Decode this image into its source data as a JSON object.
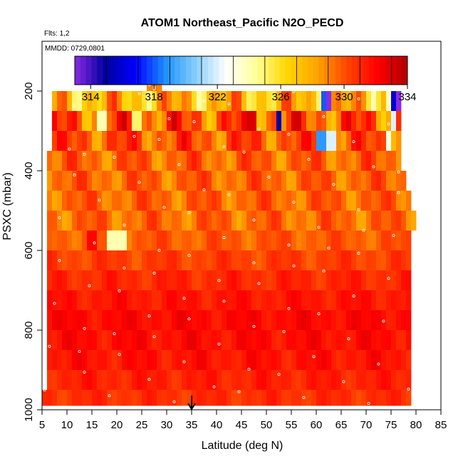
{
  "chart_data": {
    "type": "heatmap",
    "title": "ATOM1 Northeast_Pacific N2O_PECD",
    "flights_label": "Flts: 1,2",
    "date_label": "MMDD: 0729,0801",
    "xlabel": "Latitude (deg N)",
    "ylabel": "PSXC (mbar)",
    "xlim": [
      5,
      85
    ],
    "ylim": [
      1000,
      75
    ],
    "xticks": [
      "5",
      "10",
      "15",
      "20",
      "25",
      "30",
      "35",
      "40",
      "45",
      "50",
      "55",
      "60",
      "65",
      "70",
      "75",
      "80",
      "85"
    ],
    "yticks": [
      "200",
      "400",
      "600",
      "800",
      "1000"
    ],
    "colorbar": {
      "range": [
        313,
        334
      ],
      "ticks": [
        "314",
        "318",
        "322",
        "326",
        "330",
        "334"
      ],
      "colors": [
        "#8a2be2",
        "#0000a0",
        "#0000ff",
        "#1e90ff",
        "#87cefa",
        "#ffffff",
        "#ffff99",
        "#ffd700",
        "#ffa500",
        "#ff4500",
        "#ff0000",
        "#b00000"
      ]
    },
    "marker_latitude": 35,
    "bands": [
      {
        "top": 990,
        "bottom": 950,
        "lat_start": 5,
        "lat_end": 79,
        "base": 330.8,
        "amp": 0.8
      },
      {
        "top": 950,
        "bottom": 900,
        "lat_start": 6,
        "lat_end": 79,
        "base": 331.2,
        "amp": 0.8
      },
      {
        "top": 900,
        "bottom": 850,
        "lat_start": 6,
        "lat_end": 79,
        "base": 331.6,
        "amp": 0.9
      },
      {
        "top": 850,
        "bottom": 800,
        "lat_start": 6,
        "lat_end": 79,
        "base": 331.8,
        "amp": 0.9
      },
      {
        "top": 800,
        "bottom": 750,
        "lat_start": 6,
        "lat_end": 79,
        "base": 331.9,
        "amp": 0.8
      },
      {
        "top": 750,
        "bottom": 700,
        "lat_start": 6,
        "lat_end": 79,
        "base": 331.5,
        "amp": 0.8
      },
      {
        "top": 700,
        "bottom": 650,
        "lat_start": 6,
        "lat_end": 79,
        "base": 331.0,
        "amp": 0.9
      },
      {
        "top": 650,
        "bottom": 600,
        "lat_start": 6,
        "lat_end": 79,
        "base": 330.4,
        "amp": 0.9
      },
      {
        "top": 600,
        "bottom": 550,
        "lat_start": 6,
        "lat_end": 79,
        "base": 329.8,
        "amp": 1.0
      },
      {
        "top": 550,
        "bottom": 500,
        "lat_start": 6,
        "lat_end": 80,
        "base": 329.5,
        "amp": 1.5
      },
      {
        "top": 500,
        "bottom": 450,
        "lat_start": 6,
        "lat_end": 79,
        "base": 329.6,
        "amp": 1.5
      },
      {
        "top": 450,
        "bottom": 400,
        "lat_start": 6,
        "lat_end": 78,
        "base": 329.6,
        "amp": 1.6
      },
      {
        "top": 400,
        "bottom": 350,
        "lat_start": 6,
        "lat_end": 77,
        "base": 329.6,
        "amp": 1.8
      },
      {
        "top": 350,
        "bottom": 300,
        "lat_start": 7,
        "lat_end": 77,
        "base": 330.0,
        "amp": 2.5
      },
      {
        "top": 300,
        "bottom": 250,
        "lat_start": 7,
        "lat_end": 77,
        "base": 330.0,
        "amp": 3.5
      },
      {
        "top": 250,
        "bottom": 200,
        "lat_start": 7,
        "lat_end": 77,
        "base": 327.5,
        "amp": 3.5
      },
      {
        "top": 200,
        "bottom": 160,
        "lat_start": 26,
        "lat_end": 29,
        "base": 328.5,
        "amp": 1.5
      }
    ],
    "anomalies": [
      {
        "lat_start": 52,
        "lat_end": 53,
        "top": 300,
        "bottom": 250,
        "value": 315
      },
      {
        "lat_start": 46,
        "lat_end": 48,
        "top": 300,
        "bottom": 250,
        "value": 333
      },
      {
        "lat_start": 16,
        "lat_end": 18,
        "top": 300,
        "bottom": 250,
        "value": 324
      },
      {
        "lat_start": 23,
        "lat_end": 25,
        "top": 300,
        "bottom": 250,
        "value": 325
      },
      {
        "lat_start": 60,
        "lat_end": 62,
        "top": 350,
        "bottom": 300,
        "value": 319
      },
      {
        "lat_start": 62,
        "lat_end": 64,
        "top": 350,
        "bottom": 300,
        "value": 322
      },
      {
        "lat_start": 61,
        "lat_end": 62,
        "top": 250,
        "bottom": 200,
        "value": 318
      },
      {
        "lat_start": 62,
        "lat_end": 63,
        "top": 250,
        "bottom": 200,
        "value": 313
      },
      {
        "lat_start": 71,
        "lat_end": 72,
        "top": 250,
        "bottom": 200,
        "value": 324
      },
      {
        "lat_start": 74,
        "lat_end": 75,
        "top": 250,
        "bottom": 200,
        "value": 324
      },
      {
        "lat_start": 75,
        "lat_end": 76,
        "top": 250,
        "bottom": 200,
        "value": 316
      },
      {
        "lat_start": 76,
        "lat_end": 77,
        "top": 250,
        "bottom": 200,
        "value": 313
      },
      {
        "lat_start": 75,
        "lat_end": 76,
        "top": 300,
        "bottom": 250,
        "value": 322
      },
      {
        "lat_start": 74,
        "lat_end": 75,
        "top": 350,
        "bottom": 300,
        "value": 323
      },
      {
        "lat_start": 18,
        "lat_end": 22,
        "top": 600,
        "bottom": 550,
        "value": 324
      },
      {
        "lat_start": 14,
        "lat_end": 16,
        "top": 600,
        "bottom": 550,
        "value": 332
      }
    ]
  }
}
